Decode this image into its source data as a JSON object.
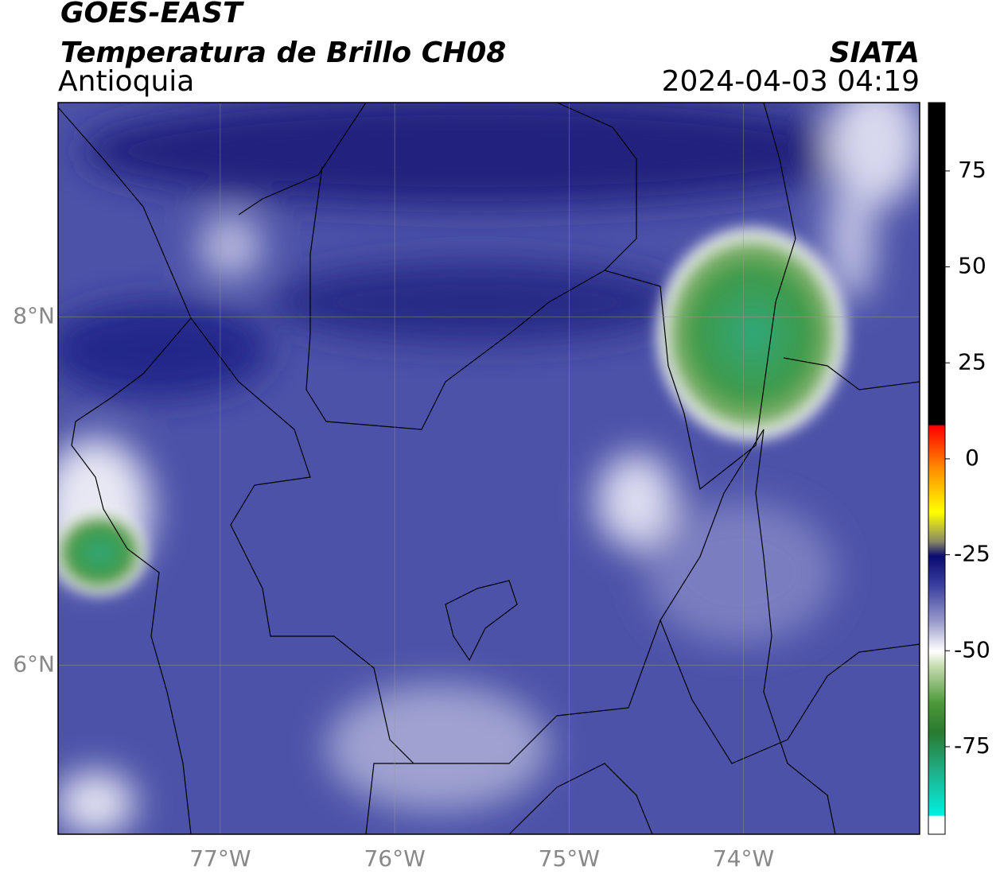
{
  "header": {
    "title": "GOES-EAST",
    "subtitle": "Temperatura de Brillo CH08",
    "region": "Antioquia",
    "source": "SIATA",
    "datetime": "2024-04-03 04:19"
  },
  "map": {
    "xlim": [
      -77.93,
      -72.99
    ],
    "ylim": [
      5.03,
      9.23
    ],
    "xticks": [
      {
        "value": -77,
        "label": "77°W"
      },
      {
        "value": -76,
        "label": "76°W"
      },
      {
        "value": -75,
        "label": "75°W"
      },
      {
        "value": -74,
        "label": "74°W"
      }
    ],
    "yticks": [
      {
        "value": 8,
        "label": "8°N"
      },
      {
        "value": 6,
        "label": "6°N"
      }
    ],
    "grid": true
  },
  "colorbar": {
    "ylim": [
      -97.8,
      92.8
    ],
    "yticks": [
      75,
      50,
      25,
      0,
      -25,
      -50,
      -75
    ]
  }
}
